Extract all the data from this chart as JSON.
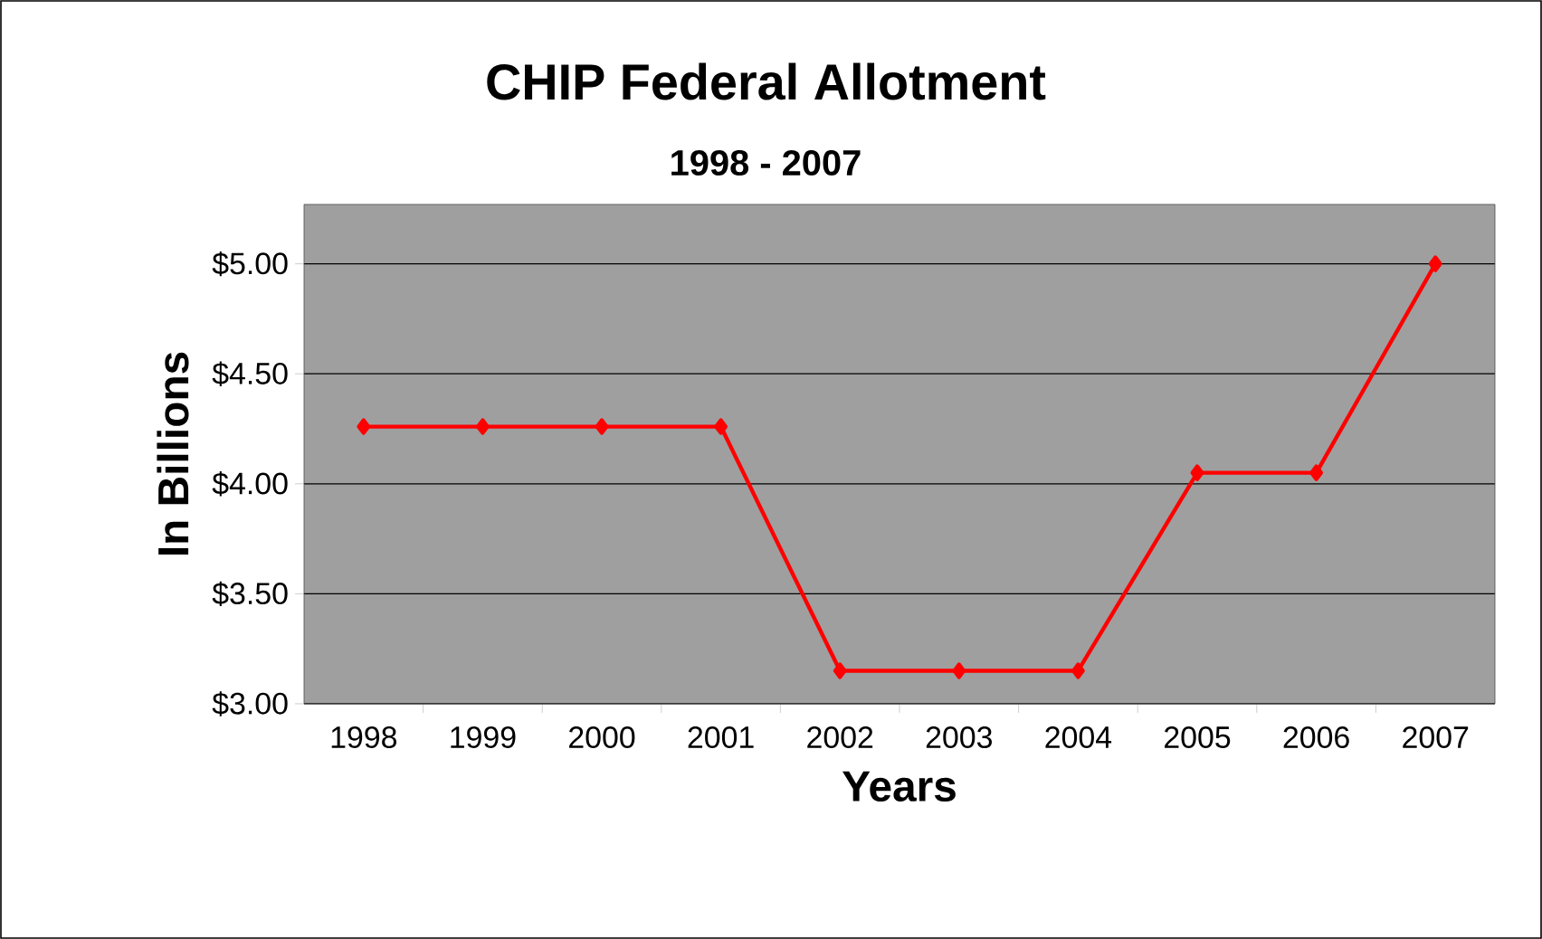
{
  "chart_data": {
    "type": "line",
    "title": "CHIP Federal Allotment",
    "subtitle": "1998 - 2007",
    "xlabel": "Years",
    "ylabel": "In Billions",
    "categories": [
      "1998",
      "1999",
      "2000",
      "2001",
      "2002",
      "2003",
      "2004",
      "2005",
      "2006",
      "2007"
    ],
    "series": [
      {
        "color": "#ff0000",
        "values": [
          4.26,
          4.26,
          4.26,
          4.26,
          3.15,
          3.15,
          3.15,
          4.05,
          4.05,
          5.0
        ]
      }
    ],
    "ylim": [
      3.0,
      5.27
    ],
    "yticks": [
      {
        "value": 3.0,
        "label": "$3.00"
      },
      {
        "value": 3.5,
        "label": "$3.50"
      },
      {
        "value": 4.0,
        "label": "$4.00"
      },
      {
        "value": 4.5,
        "label": "$4.50"
      },
      {
        "value": 5.0,
        "label": "$5.00"
      }
    ],
    "grid": "y",
    "marker": "diamond",
    "line_style": "solid"
  }
}
